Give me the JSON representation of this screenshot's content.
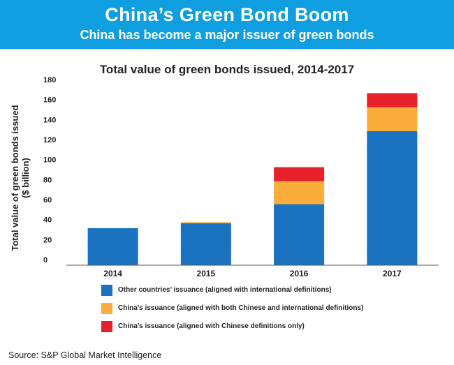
{
  "header": {
    "title": "China’s Green Bond Boom",
    "subtitle": "China has become a major issuer of green bonds"
  },
  "chart_data": {
    "type": "bar",
    "stacked": true,
    "title": "Total value of green bonds issued, 2014-2017",
    "ylabel": "Total value of green bonds issued ($ billion)",
    "xlabel": "",
    "ylim": [
      0,
      180
    ],
    "yticks": [
      0,
      20,
      40,
      60,
      80,
      100,
      120,
      140,
      160,
      180
    ],
    "categories": [
      "2014",
      "2015",
      "2016",
      "2017"
    ],
    "grid": false,
    "legend_position": "bottom",
    "series": [
      {
        "name": "Other countries’ issuance (aligned with international definitions)",
        "color": "#1a72c0",
        "values": [
          37,
          42,
          61,
          134
        ]
      },
      {
        "name": "China’s issuance (aligned with both Chinese and international definitions)",
        "color": "#faad3a",
        "values": [
          0,
          1,
          23,
          24
        ]
      },
      {
        "name": "China’s issuance (aligned with Chinese definitions only)",
        "color": "#e8202a",
        "values": [
          0,
          0,
          14,
          14
        ]
      }
    ]
  },
  "footer": {
    "source": "Source:  S&P Global Market Intelligence"
  }
}
